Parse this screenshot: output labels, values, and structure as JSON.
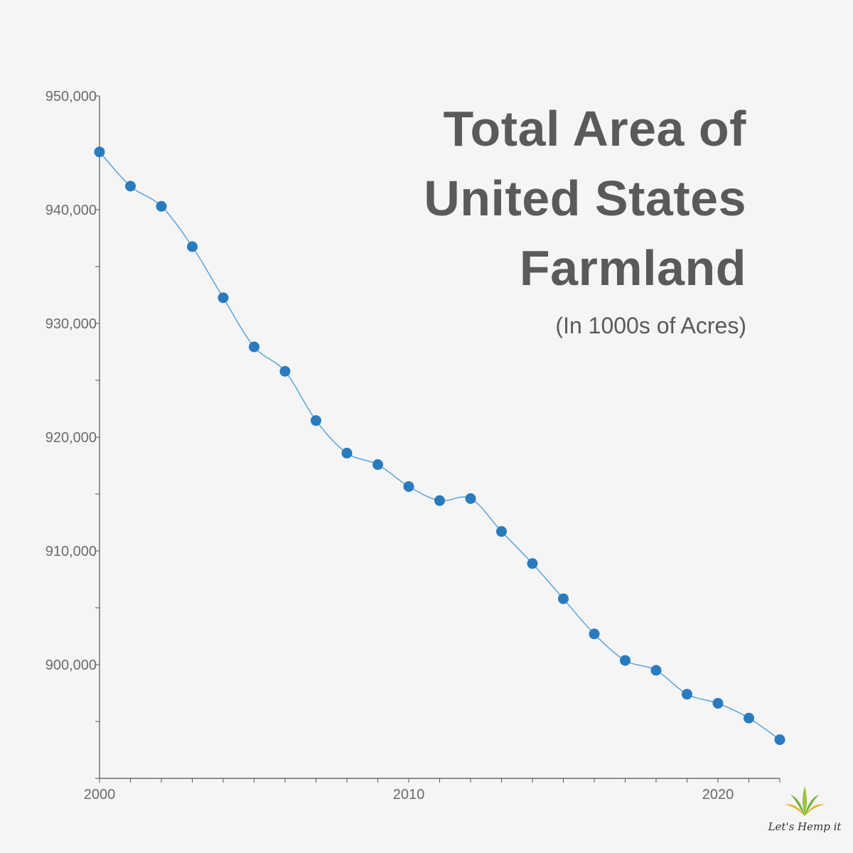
{
  "chart_data": {
    "type": "line",
    "title_lines": [
      "Total Area of",
      "United States",
      "Farmland"
    ],
    "subtitle": "(In 1000s of Acres)",
    "x": [
      2000,
      2001,
      2002,
      2003,
      2004,
      2005,
      2006,
      2007,
      2008,
      2009,
      2010,
      2011,
      2012,
      2013,
      2014,
      2015,
      2016,
      2017,
      2018,
      2019,
      2020,
      2021,
      2022
    ],
    "series": [
      {
        "values": [
          945080,
          942070,
          940300,
          936750,
          932260,
          927940,
          925790,
          921460,
          918600,
          917590,
          915660,
          914420,
          914600,
          911710,
          908890,
          905790,
          902700,
          900370,
          899500,
          897400,
          896600,
          895300,
          893400
        ],
        "color": "#2a7bbd"
      }
    ],
    "xlim": [
      2000,
      2022
    ],
    "ylim": [
      890000,
      950000
    ],
    "x_tick_labels": [
      "2000",
      "2010",
      "2020"
    ],
    "y_tick_labels": [
      "950,000",
      "940,000",
      "930,000",
      "920,000",
      "910,000",
      "900,000"
    ],
    "grid": false,
    "line_color": "#5ba3d9",
    "marker_color": "#2a7bbd"
  },
  "logo": {
    "text": "Let's Hemp it"
  }
}
